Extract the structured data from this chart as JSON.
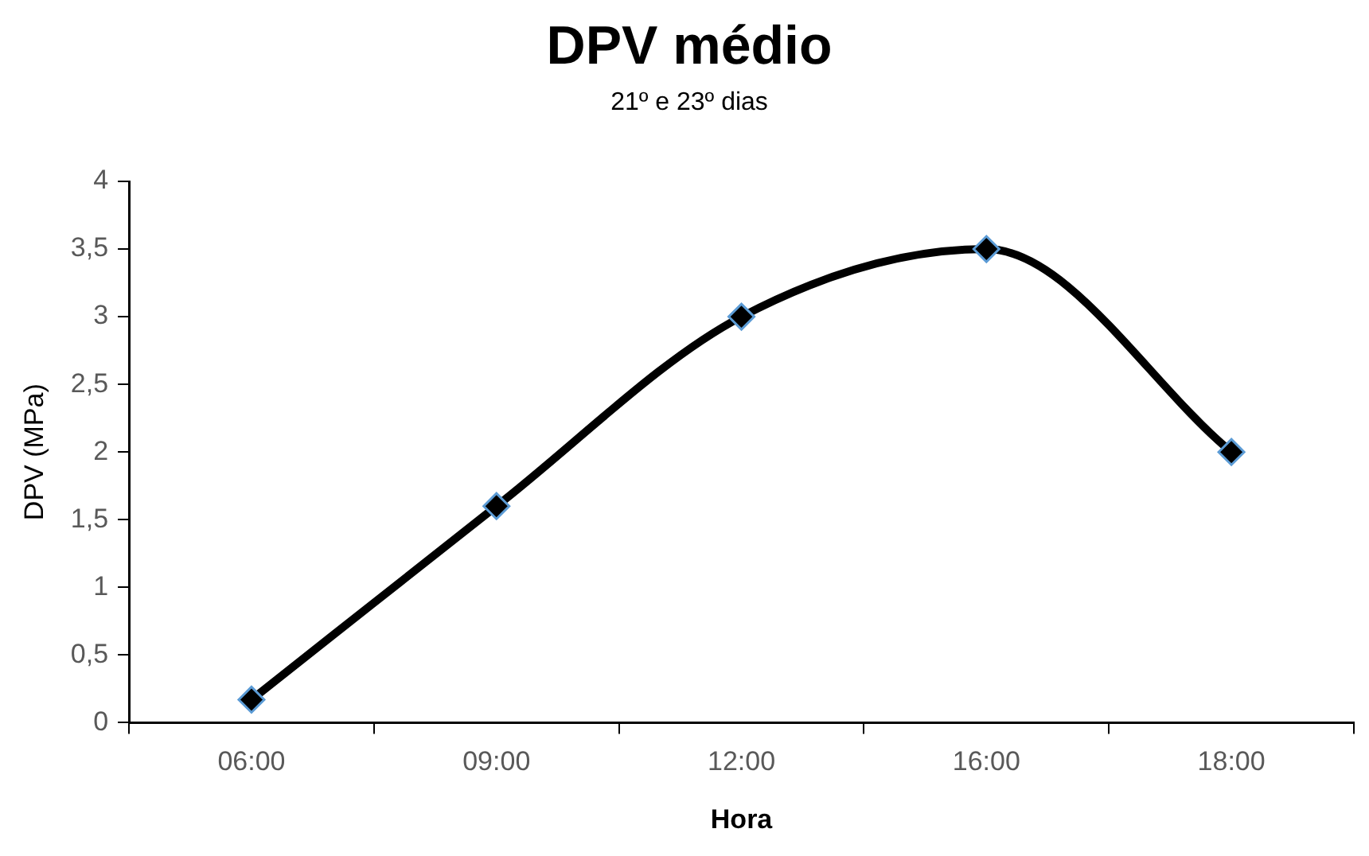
{
  "chart_data": {
    "type": "line",
    "title": "DPV médio",
    "subtitle": "21º e 23º dias",
    "xlabel": "Hora",
    "ylabel": "DPV (MPa)",
    "categories": [
      "06:00",
      "09:00",
      "12:00",
      "16:00",
      "18:00"
    ],
    "series": [
      {
        "color": "#000000",
        "values": [
          0.17,
          1.6,
          3.0,
          3.5,
          2.0
        ]
      }
    ],
    "ylim": [
      0,
      4
    ],
    "yticks": [
      0,
      {
        "value": 0.5,
        "label": "0,5"
      },
      1,
      {
        "value": 1.5,
        "label": "1,5"
      },
      2,
      {
        "value": 2.5,
        "label": "2,5"
      },
      3,
      {
        "value": 3.5,
        "label": "3,5"
      },
      4
    ],
    "grid": false,
    "legend": false,
    "marker": "diamond",
    "line_style": "solid"
  }
}
